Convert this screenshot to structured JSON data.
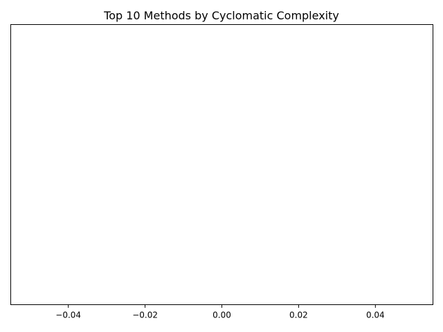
{
  "chart_data": {
    "type": "bar",
    "title": "Top 10 Methods by Cyclomatic Complexity",
    "xlabel": "",
    "ylabel": "",
    "categories": [],
    "values": [],
    "xlim": [
      -0.055,
      0.055
    ],
    "xticks": [
      -0.04,
      -0.02,
      0.0,
      0.02,
      0.04
    ],
    "xtick_labels": [
      "−0.04",
      "−0.02",
      "0.00",
      "0.02",
      "0.04"
    ],
    "yticks": [],
    "grid": false,
    "legend": "none",
    "colors": {
      "axes": "#000000",
      "background": "#ffffff"
    }
  }
}
